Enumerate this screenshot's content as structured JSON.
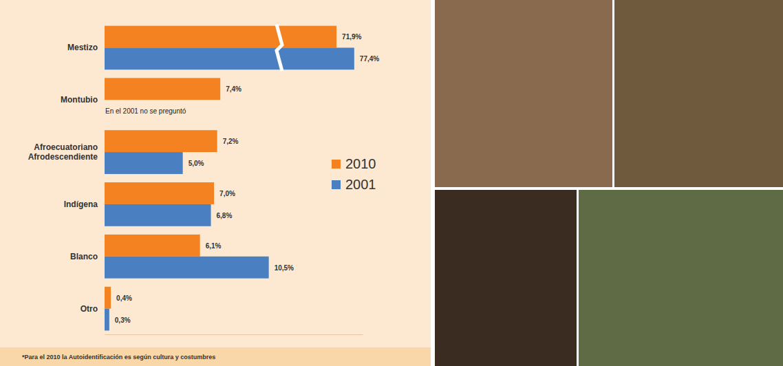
{
  "chart_data": {
    "type": "bar",
    "orientation": "horizontal",
    "categories": [
      "Mestizo",
      "Montubio",
      "Afroecuatoriano Afrodescendiente",
      "Indígena",
      "Blanco",
      "Otro"
    ],
    "series": [
      {
        "name": "2010",
        "color": "#f58220",
        "values": [
          71.9,
          7.4,
          7.2,
          7.0,
          6.1,
          0.4
        ],
        "value_labels": [
          "71,9%",
          "7,4%",
          "7,2%",
          "7,0%",
          "6,1%",
          "0,4%"
        ]
      },
      {
        "name": "2001",
        "color": "#4a7fc1",
        "values": [
          77.4,
          null,
          5.0,
          6.8,
          10.5,
          0.3
        ],
        "value_labels": [
          "77,4%",
          null,
          "5,0%",
          "6,8%",
          "10,5%",
          "0,3%"
        ]
      }
    ],
    "xlim": [
      0,
      80
    ],
    "xbreak": [
      11,
      55
    ],
    "annotation": "En el 2001 no se preguntó",
    "footnote": "*Para el 2010 la Autoidentificación es según cultura y costumbres",
    "data_labels": true,
    "tick_labels": false,
    "grid": false,
    "legend": "right"
  }
}
